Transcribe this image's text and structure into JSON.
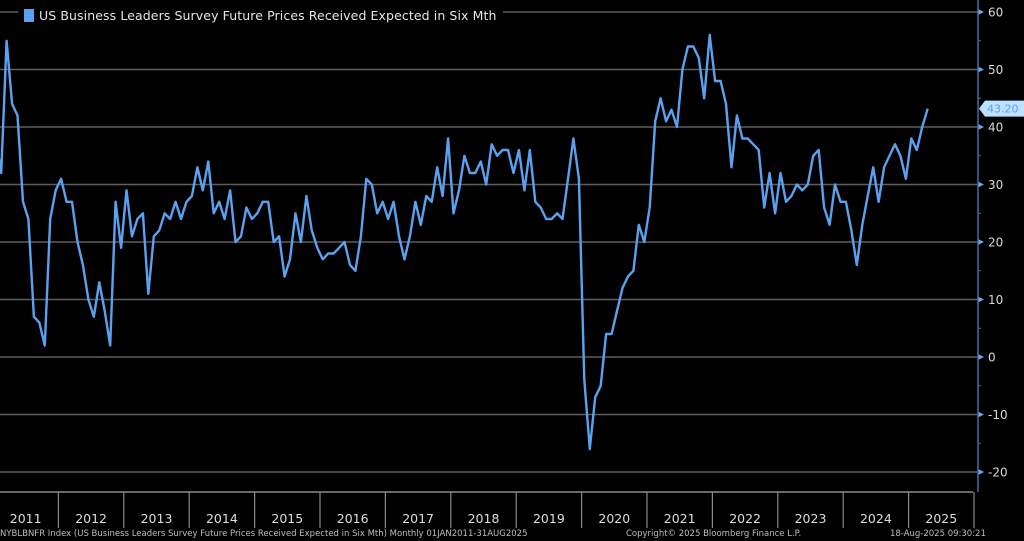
{
  "chart_data": {
    "type": "line",
    "title": "US Business Leaders Survey Future Prices Received Expected in Six Mth",
    "xlabel": "",
    "ylabel": "",
    "ylim": [
      -22,
      62
    ],
    "y_ticks": [
      60,
      50,
      40,
      30,
      20,
      10,
      0,
      -10,
      -20
    ],
    "x_tick_labels": [
      "2011",
      "2012",
      "2013",
      "2014",
      "2015",
      "2016",
      "2017",
      "2018",
      "2019",
      "2020",
      "2021",
      "2022",
      "2023",
      "2024",
      "2025"
    ],
    "grid": true,
    "legend_position": "top-left",
    "last_value_label": "43.20",
    "series": [
      {
        "name": "US Business Leaders Survey Future Prices Received Expected in Six Mth",
        "color": "#5aa2f0",
        "start": "2011-01",
        "frequency": "monthly",
        "values": [
          38,
          32,
          55,
          44,
          42,
          27,
          24,
          7,
          6,
          2,
          24,
          29,
          31,
          27,
          27,
          20,
          16,
          10,
          7,
          13,
          8,
          2,
          27,
          19,
          29,
          21,
          24,
          25,
          11,
          21,
          22,
          25,
          24,
          27,
          24,
          27,
          28,
          33,
          29,
          34,
          25,
          27,
          24,
          29,
          20,
          21,
          26,
          24,
          25,
          27,
          27,
          20,
          21,
          14,
          17,
          25,
          20,
          28,
          22,
          19,
          17,
          18,
          18,
          19,
          20,
          16,
          15,
          21,
          31,
          30,
          25,
          27,
          24,
          27,
          21,
          17,
          21,
          27,
          23,
          28,
          27,
          33,
          28,
          38,
          25,
          29,
          35,
          32,
          32,
          34,
          30,
          37,
          35,
          36,
          36,
          32,
          36,
          29,
          36,
          27,
          26,
          24,
          24,
          25,
          24,
          31,
          38,
          31,
          -4,
          -16,
          -7,
          -5,
          4,
          4,
          8,
          12,
          14,
          15,
          23,
          20,
          26,
          41,
          45,
          41,
          43,
          40,
          50,
          54,
          54,
          52,
          45,
          56,
          48,
          48,
          44,
          33,
          42,
          38,
          38,
          37,
          36,
          26,
          32,
          25,
          32,
          27,
          28,
          30,
          29,
          30,
          35,
          36,
          26,
          23,
          30,
          27,
          27,
          22,
          16,
          23,
          28,
          33,
          27,
          33,
          35,
          37,
          35,
          31,
          38,
          36,
          40,
          43.2
        ]
      }
    ]
  },
  "footer": {
    "source": "NYBLBNFR Index (US Business Leaders Survey Future Prices Received Expected in Six Mth)  Monthly 01JAN2011-31AUG2025",
    "copyright": "Copyright© 2025 Bloomberg Finance L.P.",
    "timestamp": "18-Aug-2025 09:30:21"
  }
}
